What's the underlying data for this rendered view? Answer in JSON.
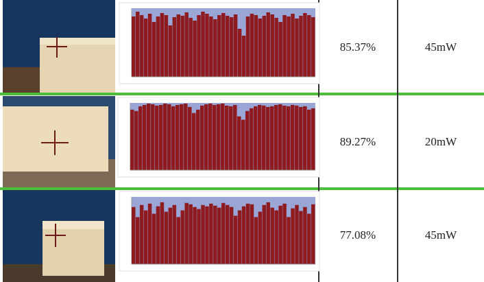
{
  "table": {
    "rows": [
      [
        "85.37%",
        "45mW"
      ],
      [
        "89.27%",
        "20mW"
      ],
      [
        "77.08%",
        "45mW"
      ]
    ]
  },
  "chart_data": [
    {
      "type": "bar",
      "color": "#8e1b1f",
      "ylim": [
        0,
        100
      ],
      "values": [
        88,
        95,
        90,
        85,
        92,
        80,
        88,
        93,
        90,
        75,
        87,
        91,
        89,
        94,
        86,
        82,
        90,
        95,
        92,
        88,
        84,
        90,
        93,
        89,
        87,
        91,
        70,
        60,
        88,
        92,
        90,
        85,
        89,
        94,
        91,
        86,
        80,
        90,
        88,
        92,
        85,
        89,
        93,
        90,
        87
      ]
    },
    {
      "type": "bar",
      "color": "#8e1b1f",
      "ylim": [
        0,
        100
      ],
      "values": [
        90,
        88,
        95,
        97,
        99,
        98,
        96,
        97,
        99,
        98,
        95,
        97,
        98,
        99,
        94,
        85,
        90,
        96,
        98,
        99,
        97,
        98,
        99,
        96,
        95,
        97,
        80,
        75,
        88,
        92,
        95,
        97,
        96,
        94,
        95,
        97,
        98,
        96,
        95,
        97,
        96,
        94,
        95,
        90,
        92
      ]
    },
    {
      "type": "bar",
      "color": "#8e1b1f",
      "ylim": [
        0,
        100
      ],
      "values": [
        85,
        70,
        88,
        80,
        90,
        75,
        86,
        92,
        78,
        84,
        88,
        70,
        80,
        91,
        89,
        85,
        82,
        88,
        86,
        90,
        87,
        84,
        91,
        88,
        85,
        72,
        80,
        86,
        90,
        89,
        70,
        78,
        88,
        92,
        84,
        80,
        87,
        90,
        70,
        83,
        88,
        79,
        85,
        75,
        89
      ]
    }
  ]
}
